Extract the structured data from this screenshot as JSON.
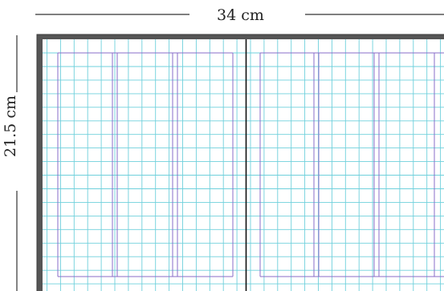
{
  "dimensions": {
    "width_label": "34 cm",
    "height_label": "21.5 cm"
  },
  "colors": {
    "frame": "#555555",
    "frame_border": "#3a3a3a",
    "grid": "#6fd0dc",
    "margin_guides": "#8a6cc9",
    "spine": "#111111",
    "dimension_line": "#333333"
  }
}
